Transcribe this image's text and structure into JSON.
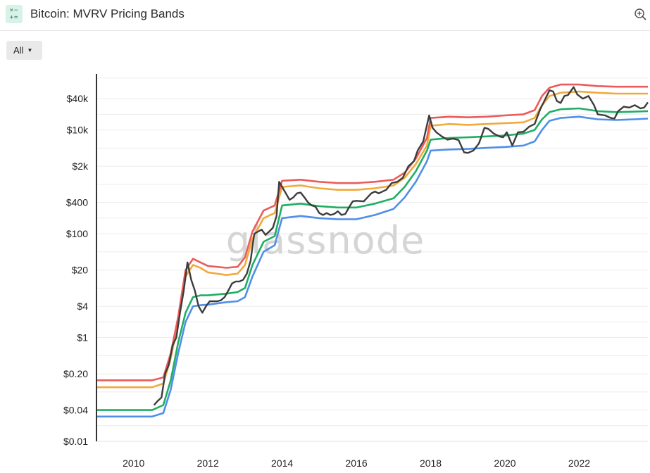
{
  "header": {
    "title": "Bitcoin: MVRV Pricing Bands",
    "icon": "formula-icon",
    "zoom_icon": "zoom-in-icon"
  },
  "controls": {
    "range_label": "All"
  },
  "watermark": "glassnode",
  "chart_data": {
    "type": "line",
    "y_scale": "log",
    "ylim": [
      0.01,
      120000
    ],
    "xlim": [
      2009.0,
      2023.85
    ],
    "x_ticks": [
      2010,
      2012,
      2014,
      2016,
      2018,
      2020,
      2022
    ],
    "y_ticks": [
      {
        "label": "$0.01",
        "value": 0.01
      },
      {
        "label": "$0.04",
        "value": 0.04
      },
      {
        "label": "$0.20",
        "value": 0.2
      },
      {
        "label": "$1",
        "value": 1
      },
      {
        "label": "$4",
        "value": 4
      },
      {
        "label": "$20",
        "value": 20
      },
      {
        "label": "$100",
        "value": 100
      },
      {
        "label": "$400",
        "value": 400
      },
      {
        "label": "$2k",
        "value": 2000
      },
      {
        "label": "$10k",
        "value": 10000
      },
      {
        "label": "$40k",
        "value": 40000
      }
    ],
    "grid": true,
    "series": [
      {
        "color": "#4f8fe8",
        "points": [
          [
            2009.0,
            0.03
          ],
          [
            2010.5,
            0.03
          ],
          [
            2010.8,
            0.035
          ],
          [
            2011.0,
            0.1
          ],
          [
            2011.2,
            0.5
          ],
          [
            2011.4,
            2.0
          ],
          [
            2011.6,
            4.0
          ],
          [
            2011.8,
            4.2
          ],
          [
            2012.0,
            4.3
          ],
          [
            2012.5,
            4.8
          ],
          [
            2012.8,
            5.0
          ],
          [
            2013.0,
            6.0
          ],
          [
            2013.2,
            15.0
          ],
          [
            2013.5,
            45.0
          ],
          [
            2013.8,
            60.0
          ],
          [
            2013.95,
            150.0
          ],
          [
            2014.0,
            200.0
          ],
          [
            2014.5,
            220.0
          ],
          [
            2015.0,
            200.0
          ],
          [
            2015.5,
            190.0
          ],
          [
            2016.0,
            190.0
          ],
          [
            2016.5,
            230.0
          ],
          [
            2017.0,
            300.0
          ],
          [
            2017.3,
            500.0
          ],
          [
            2017.6,
            1000.0
          ],
          [
            2017.9,
            2500.0
          ],
          [
            2018.0,
            4000.0
          ],
          [
            2018.5,
            4200.0
          ],
          [
            2019.0,
            4300.0
          ],
          [
            2019.5,
            4500.0
          ],
          [
            2020.0,
            4700.0
          ],
          [
            2020.5,
            5000.0
          ],
          [
            2020.8,
            6000.0
          ],
          [
            2021.0,
            10000.0
          ],
          [
            2021.2,
            15000.0
          ],
          [
            2021.5,
            17000.0
          ],
          [
            2022.0,
            18000.0
          ],
          [
            2022.5,
            16000.0
          ],
          [
            2023.0,
            15500.0
          ],
          [
            2023.5,
            16000.0
          ],
          [
            2023.85,
            16500.0
          ]
        ]
      },
      {
        "color": "#1fae64",
        "points": [
          [
            2009.0,
            0.04
          ],
          [
            2010.5,
            0.04
          ],
          [
            2010.8,
            0.05
          ],
          [
            2011.0,
            0.15
          ],
          [
            2011.2,
            0.8
          ],
          [
            2011.4,
            3.0
          ],
          [
            2011.6,
            6.0
          ],
          [
            2011.8,
            6.5
          ],
          [
            2012.0,
            6.5
          ],
          [
            2012.5,
            7.0
          ],
          [
            2012.8,
            7.5
          ],
          [
            2013.0,
            9.0
          ],
          [
            2013.2,
            25.0
          ],
          [
            2013.5,
            70.0
          ],
          [
            2013.8,
            90.0
          ],
          [
            2013.95,
            250.0
          ],
          [
            2014.0,
            350.0
          ],
          [
            2014.5,
            380.0
          ],
          [
            2015.0,
            340.0
          ],
          [
            2015.5,
            320.0
          ],
          [
            2016.0,
            320.0
          ],
          [
            2016.5,
            380.0
          ],
          [
            2017.0,
            480.0
          ],
          [
            2017.3,
            800.0
          ],
          [
            2017.6,
            1600.0
          ],
          [
            2017.9,
            4000.0
          ],
          [
            2018.0,
            6500.0
          ],
          [
            2018.5,
            7000.0
          ],
          [
            2019.0,
            7200.0
          ],
          [
            2019.5,
            7500.0
          ],
          [
            2020.0,
            7800.0
          ],
          [
            2020.5,
            8500.0
          ],
          [
            2020.8,
            10000.0
          ],
          [
            2021.0,
            16000.0
          ],
          [
            2021.2,
            22000.0
          ],
          [
            2021.5,
            25000.0
          ],
          [
            2022.0,
            26000.0
          ],
          [
            2022.5,
            23000.0
          ],
          [
            2023.0,
            22000.0
          ],
          [
            2023.5,
            22500.0
          ],
          [
            2023.85,
            23000.0
          ]
        ]
      },
      {
        "color": "#f2a93b",
        "points": [
          [
            2009.0,
            0.11
          ],
          [
            2010.5,
            0.11
          ],
          [
            2010.8,
            0.13
          ],
          [
            2011.0,
            0.4
          ],
          [
            2011.2,
            2.0
          ],
          [
            2011.4,
            15.0
          ],
          [
            2011.6,
            25.0
          ],
          [
            2011.8,
            22.0
          ],
          [
            2012.0,
            18.0
          ],
          [
            2012.5,
            16.0
          ],
          [
            2012.8,
            17.0
          ],
          [
            2013.0,
            25.0
          ],
          [
            2013.2,
            80.0
          ],
          [
            2013.5,
            200.0
          ],
          [
            2013.8,
            250.0
          ],
          [
            2013.95,
            600.0
          ],
          [
            2014.0,
            800.0
          ],
          [
            2014.5,
            850.0
          ],
          [
            2015.0,
            750.0
          ],
          [
            2015.5,
            700.0
          ],
          [
            2016.0,
            700.0
          ],
          [
            2016.5,
            750.0
          ],
          [
            2017.0,
            850.0
          ],
          [
            2017.3,
            1200.0
          ],
          [
            2017.6,
            2200.0
          ],
          [
            2017.9,
            5000.0
          ],
          [
            2018.0,
            12000.0
          ],
          [
            2018.5,
            13000.0
          ],
          [
            2019.0,
            12500.0
          ],
          [
            2019.5,
            13000.0
          ],
          [
            2020.0,
            13500.0
          ],
          [
            2020.5,
            14000.0
          ],
          [
            2020.8,
            17000.0
          ],
          [
            2021.0,
            30000.0
          ],
          [
            2021.2,
            45000.0
          ],
          [
            2021.5,
            52000.0
          ],
          [
            2022.0,
            55000.0
          ],
          [
            2022.5,
            52000.0
          ],
          [
            2023.0,
            50000.0
          ],
          [
            2023.5,
            50000.0
          ],
          [
            2023.85,
            50000.0
          ]
        ]
      },
      {
        "color": "#eb5b5b",
        "points": [
          [
            2009.0,
            0.15
          ],
          [
            2010.5,
            0.15
          ],
          [
            2010.8,
            0.17
          ],
          [
            2011.0,
            0.5
          ],
          [
            2011.2,
            2.5
          ],
          [
            2011.4,
            20.0
          ],
          [
            2011.6,
            33.0
          ],
          [
            2011.8,
            28.0
          ],
          [
            2012.0,
            24.0
          ],
          [
            2012.5,
            22.0
          ],
          [
            2012.8,
            23.0
          ],
          [
            2013.0,
            35.0
          ],
          [
            2013.2,
            110.0
          ],
          [
            2013.5,
            280.0
          ],
          [
            2013.8,
            350.0
          ],
          [
            2013.95,
            800.0
          ],
          [
            2014.0,
            1050.0
          ],
          [
            2014.5,
            1100.0
          ],
          [
            2015.0,
            1000.0
          ],
          [
            2015.5,
            950.0
          ],
          [
            2016.0,
            950.0
          ],
          [
            2016.5,
            1000.0
          ],
          [
            2017.0,
            1100.0
          ],
          [
            2017.3,
            1500.0
          ],
          [
            2017.6,
            2800.0
          ],
          [
            2017.9,
            7000.0
          ],
          [
            2018.0,
            17000.0
          ],
          [
            2018.5,
            18000.0
          ],
          [
            2019.0,
            17500.0
          ],
          [
            2019.5,
            18000.0
          ],
          [
            2020.0,
            19000.0
          ],
          [
            2020.5,
            20000.0
          ],
          [
            2020.8,
            24000.0
          ],
          [
            2021.0,
            45000.0
          ],
          [
            2021.2,
            65000.0
          ],
          [
            2021.5,
            75000.0
          ],
          [
            2022.0,
            75000.0
          ],
          [
            2022.5,
            70000.0
          ],
          [
            2023.0,
            68000.0
          ],
          [
            2023.5,
            68000.0
          ],
          [
            2023.85,
            68000.0
          ]
        ]
      },
      {
        "color": "#3c3c3c",
        "points": [
          [
            2010.55,
            0.05
          ],
          [
            2010.65,
            0.06
          ],
          [
            2010.75,
            0.07
          ],
          [
            2010.85,
            0.2
          ],
          [
            2010.95,
            0.3
          ],
          [
            2011.05,
            0.7
          ],
          [
            2011.15,
            1.0
          ],
          [
            2011.25,
            3.0
          ],
          [
            2011.35,
            8.0
          ],
          [
            2011.45,
            28.0
          ],
          [
            2011.55,
            13.0
          ],
          [
            2011.65,
            8.0
          ],
          [
            2011.75,
            4.0
          ],
          [
            2011.85,
            3.0
          ],
          [
            2011.95,
            4.0
          ],
          [
            2012.05,
            5.0
          ],
          [
            2012.15,
            5.0
          ],
          [
            2012.25,
            5.0
          ],
          [
            2012.35,
            5.2
          ],
          [
            2012.45,
            6.0
          ],
          [
            2012.55,
            8.0
          ],
          [
            2012.65,
            11.0
          ],
          [
            2012.75,
            12.0
          ],
          [
            2012.85,
            12.0
          ],
          [
            2012.95,
            13.0
          ],
          [
            2013.05,
            17.0
          ],
          [
            2013.15,
            30.0
          ],
          [
            2013.25,
            100.0
          ],
          [
            2013.35,
            110.0
          ],
          [
            2013.45,
            120.0
          ],
          [
            2013.55,
            95.0
          ],
          [
            2013.65,
            110.0
          ],
          [
            2013.75,
            130.0
          ],
          [
            2013.85,
            220.0
          ],
          [
            2013.92,
            1000.0
          ],
          [
            2014.0,
            800.0
          ],
          [
            2014.1,
            600.0
          ],
          [
            2014.2,
            450.0
          ],
          [
            2014.3,
            500.0
          ],
          [
            2014.4,
            600.0
          ],
          [
            2014.5,
            620.0
          ],
          [
            2014.6,
            500.0
          ],
          [
            2014.7,
            400.0
          ],
          [
            2014.8,
            350.0
          ],
          [
            2014.9,
            330.0
          ],
          [
            2015.0,
            250.0
          ],
          [
            2015.1,
            230.0
          ],
          [
            2015.2,
            250.0
          ],
          [
            2015.3,
            230.0
          ],
          [
            2015.4,
            240.0
          ],
          [
            2015.5,
            270.0
          ],
          [
            2015.6,
            230.0
          ],
          [
            2015.7,
            240.0
          ],
          [
            2015.8,
            320.0
          ],
          [
            2015.9,
            420.0
          ],
          [
            2016.0,
            430.0
          ],
          [
            2016.2,
            420.0
          ],
          [
            2016.4,
            600.0
          ],
          [
            2016.5,
            650.0
          ],
          [
            2016.6,
            600.0
          ],
          [
            2016.8,
            700.0
          ],
          [
            2016.95,
            950.0
          ],
          [
            2017.1,
            1000.0
          ],
          [
            2017.25,
            1200.0
          ],
          [
            2017.4,
            2000.0
          ],
          [
            2017.55,
            2500.0
          ],
          [
            2017.65,
            4000.0
          ],
          [
            2017.8,
            6000.0
          ],
          [
            2017.96,
            19000.0
          ],
          [
            2018.05,
            11000.0
          ],
          [
            2018.15,
            9000.0
          ],
          [
            2018.3,
            7500.0
          ],
          [
            2018.45,
            6500.0
          ],
          [
            2018.6,
            6800.0
          ],
          [
            2018.75,
            6400.0
          ],
          [
            2018.9,
            3700.0
          ],
          [
            2019.0,
            3600.0
          ],
          [
            2019.15,
            4000.0
          ],
          [
            2019.3,
            5500.0
          ],
          [
            2019.45,
            11000.0
          ],
          [
            2019.55,
            10500.0
          ],
          [
            2019.7,
            8500.0
          ],
          [
            2019.85,
            7500.0
          ],
          [
            2019.95,
            7200.0
          ],
          [
            2020.05,
            9000.0
          ],
          [
            2020.2,
            5000.0
          ],
          [
            2020.35,
            9000.0
          ],
          [
            2020.5,
            9200.0
          ],
          [
            2020.65,
            11500.0
          ],
          [
            2020.8,
            13000.0
          ],
          [
            2020.95,
            25000.0
          ],
          [
            2021.05,
            35000.0
          ],
          [
            2021.2,
            58000.0
          ],
          [
            2021.3,
            55000.0
          ],
          [
            2021.4,
            36000.0
          ],
          [
            2021.5,
            33000.0
          ],
          [
            2021.6,
            45000.0
          ],
          [
            2021.7,
            47000.0
          ],
          [
            2021.85,
            67000.0
          ],
          [
            2021.95,
            48000.0
          ],
          [
            2022.1,
            40000.0
          ],
          [
            2022.25,
            45000.0
          ],
          [
            2022.4,
            30000.0
          ],
          [
            2022.5,
            20000.0
          ],
          [
            2022.7,
            19000.0
          ],
          [
            2022.85,
            17000.0
          ],
          [
            2022.95,
            16500.0
          ],
          [
            2023.05,
            23000.0
          ],
          [
            2023.2,
            28000.0
          ],
          [
            2023.35,
            27000.0
          ],
          [
            2023.5,
            30000.0
          ],
          [
            2023.65,
            26000.0
          ],
          [
            2023.75,
            27000.0
          ],
          [
            2023.85,
            34000.0
          ]
        ]
      }
    ]
  }
}
